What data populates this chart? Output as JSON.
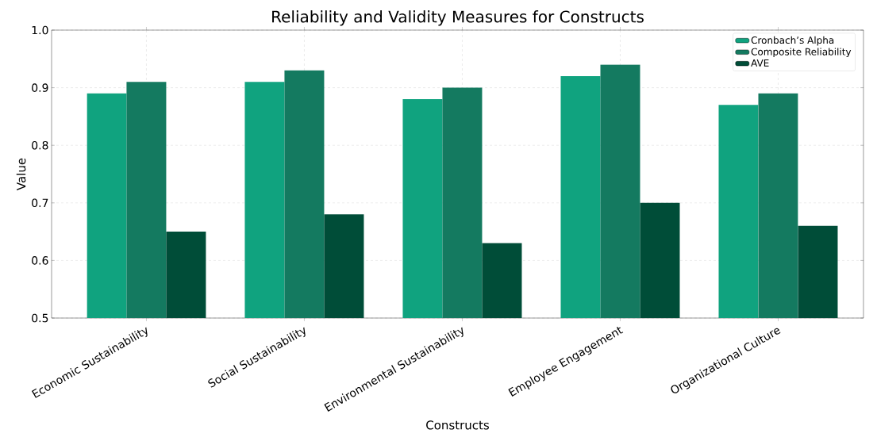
{
  "chart_data": {
    "type": "bar",
    "title": "Reliability and Validity Measures for Constructs",
    "xlabel": "Constructs",
    "ylabel": "Value",
    "categories": [
      "Economic Sustainability",
      "Social Sustainability",
      "Environmental Sustainability",
      "Employee Engagement",
      "Organizational Culture"
    ],
    "series": [
      {
        "name": "Cronbach’s Alpha",
        "color": "#10a37f",
        "values": [
          0.89,
          0.91,
          0.88,
          0.92,
          0.87
        ]
      },
      {
        "name": "Composite Reliability",
        "color": "#147a60",
        "values": [
          0.91,
          0.93,
          0.9,
          0.94,
          0.89
        ]
      },
      {
        "name": "AVE",
        "color": "#004d38",
        "values": [
          0.65,
          0.68,
          0.63,
          0.7,
          0.66
        ]
      }
    ],
    "ylim": [
      0.5,
      1.0
    ],
    "yticks": [
      {
        "value": 0.5,
        "label": "0.5"
      },
      {
        "value": 0.6,
        "label": "0.6"
      },
      {
        "value": 0.7,
        "label": "0.7"
      },
      {
        "value": 0.8,
        "label": "0.8"
      },
      {
        "value": 0.9,
        "label": "0.9"
      },
      {
        "value": 1.0,
        "label": "1.0"
      }
    ],
    "grid": true,
    "legend": "top right"
  }
}
